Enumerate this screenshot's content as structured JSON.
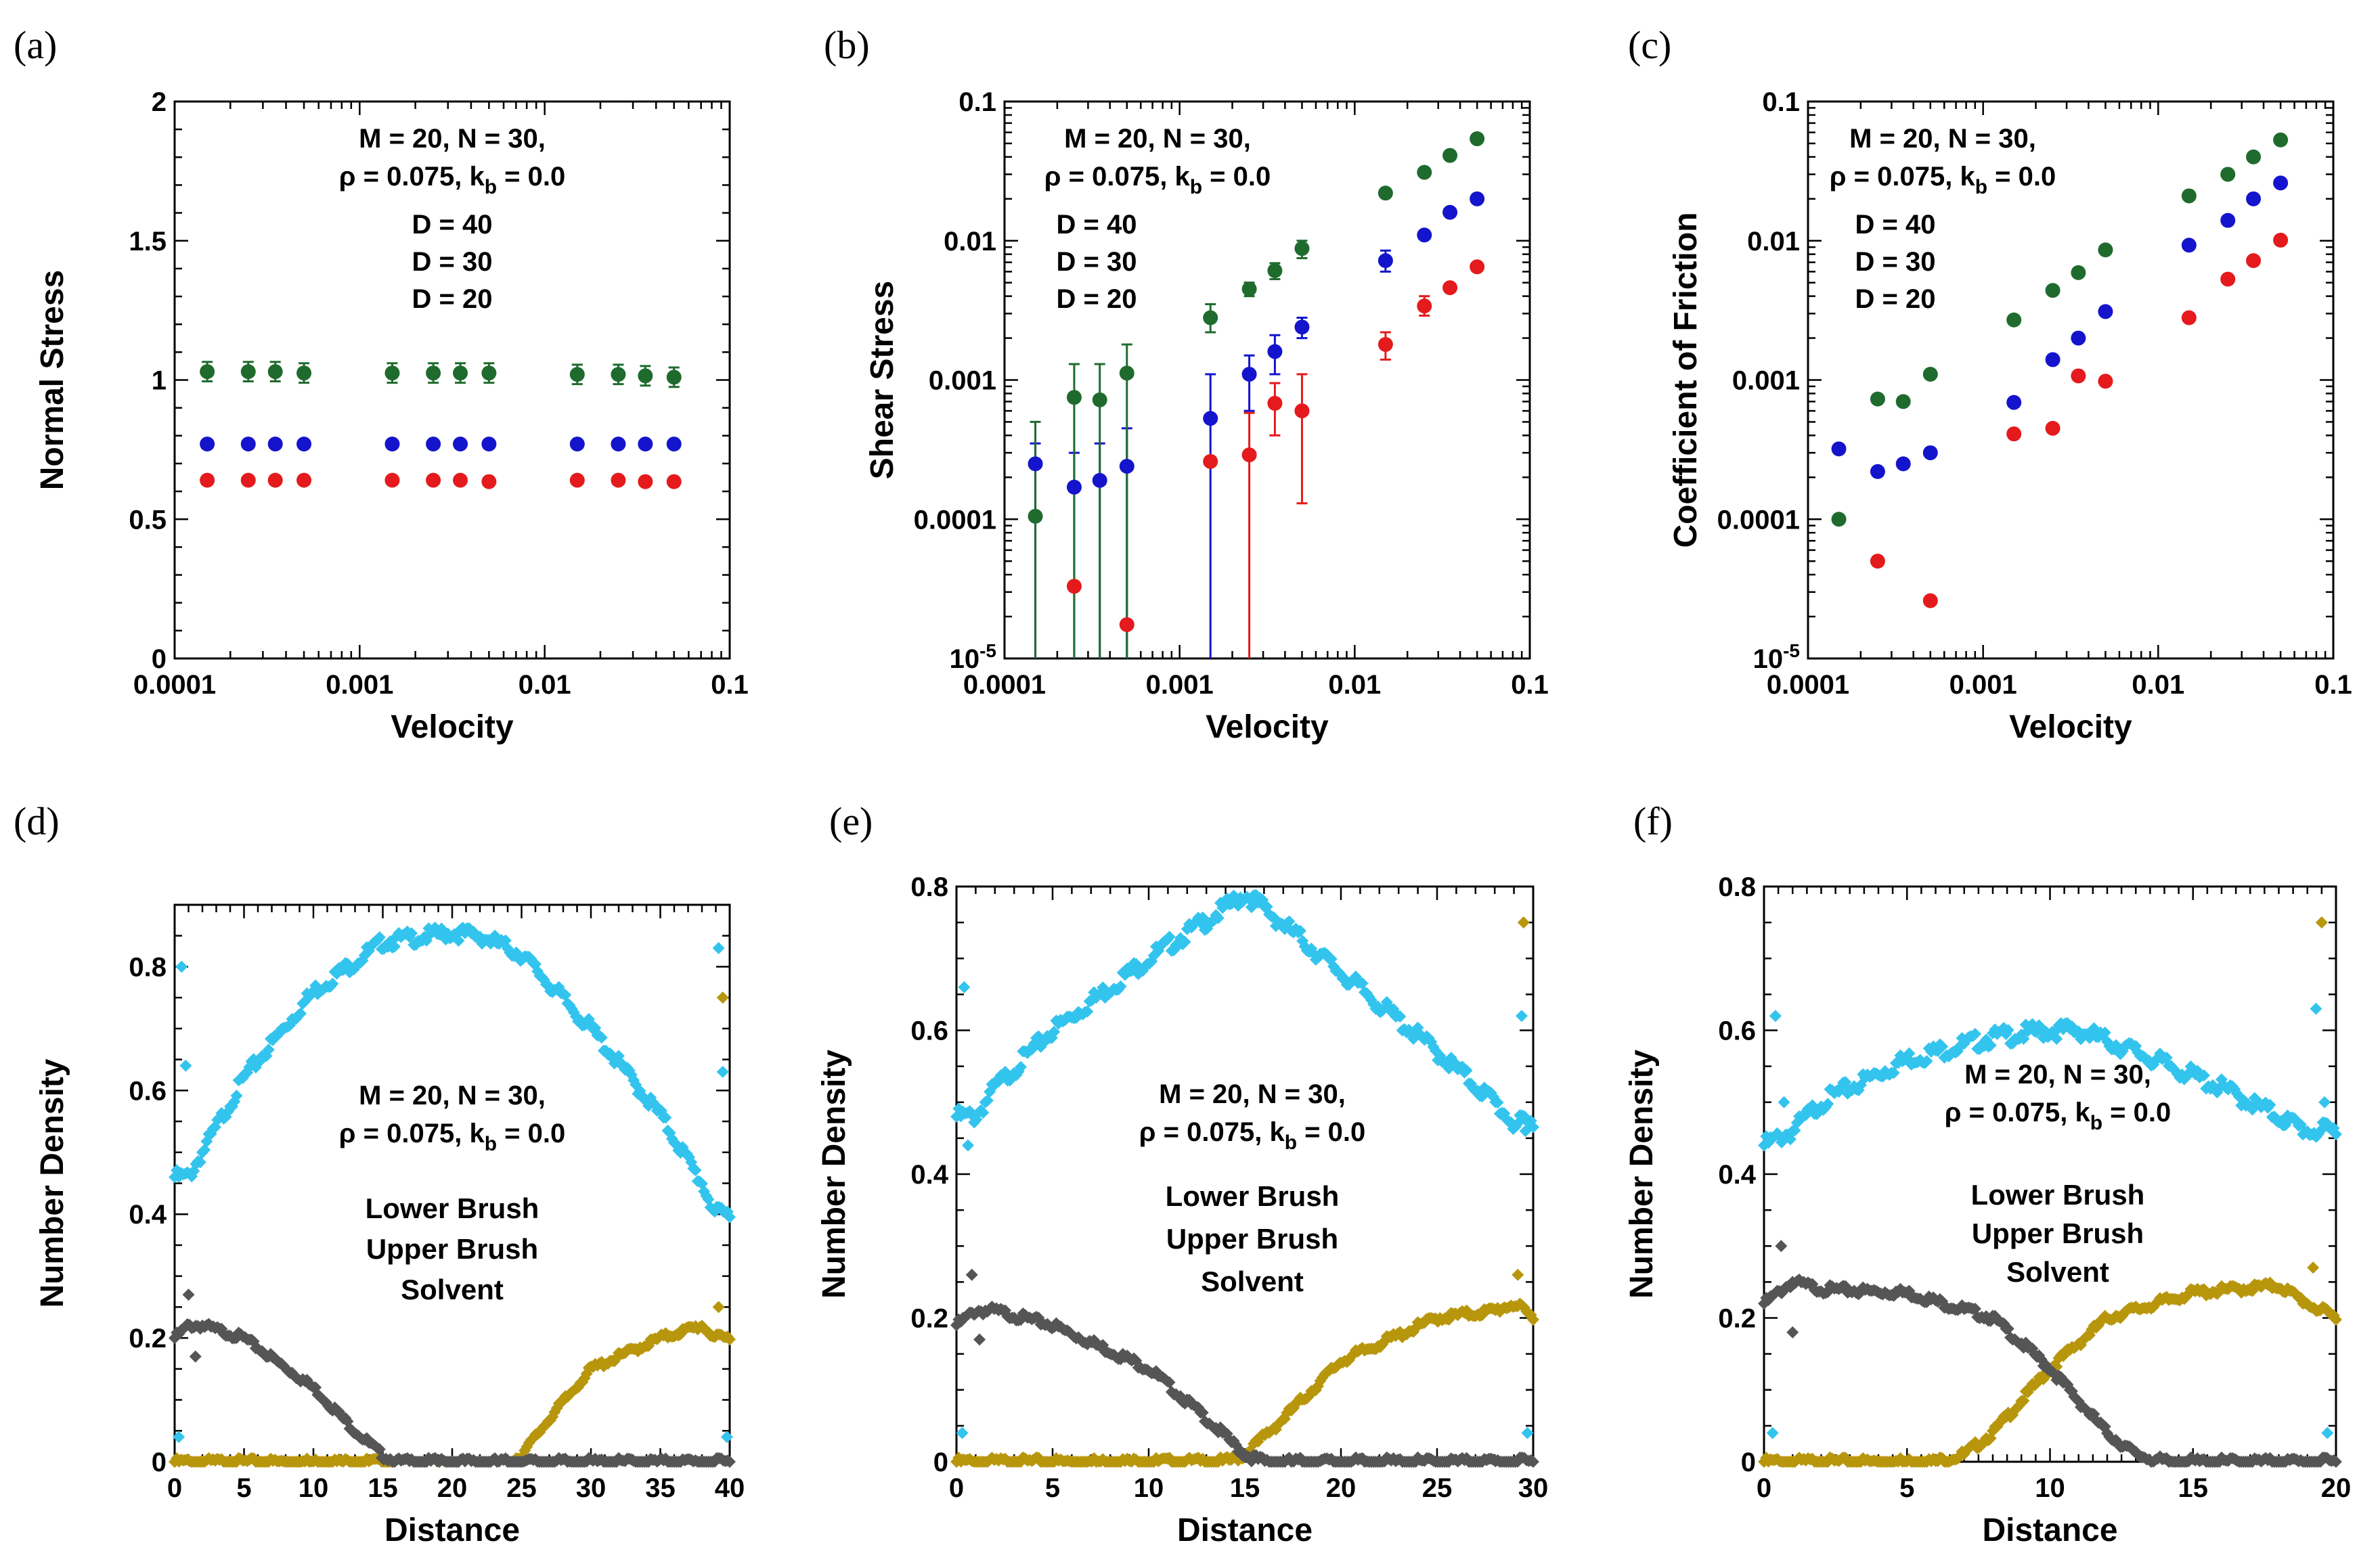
{
  "figure": {
    "colors": {
      "red": "#e41a1c",
      "blue": "#1414cc",
      "green": "#1f6b2e",
      "lower": "#555555",
      "upper": "#b8960c",
      "solvent": "#33c4ee"
    }
  },
  "chart_data": [
    {
      "panel": "(a)",
      "type": "scatter",
      "xscale": "log",
      "yscale": "linear",
      "xlabel": "Velocity",
      "ylabel": "Normal Stress",
      "xlim": [
        0.0001,
        0.1
      ],
      "ylim": [
        0,
        2
      ],
      "xticks": [
        "0.0001",
        "0.001",
        "0.01",
        "0.1"
      ],
      "xtick_values": [
        0.0001,
        0.001,
        0.01,
        0.1
      ],
      "yticks": [
        "0",
        "0.5",
        "1",
        "1.5",
        "2"
      ],
      "ytick_values": [
        0,
        0.5,
        1,
        1.5,
        2
      ],
      "annotation": {
        "line1": "M = 20, N = 30,",
        "line2a": "ρ = 0.075, k",
        "sub": "b",
        "line2b": " = 0.0"
      },
      "series": [
        {
          "name": "D = 40",
          "color": "#e41a1c",
          "x": [
            0.00015,
            0.00025,
            0.00035,
            0.0005,
            0.0015,
            0.0025,
            0.0035,
            0.005,
            0.015,
            0.025,
            0.035,
            0.05
          ],
          "y": [
            0.64,
            0.64,
            0.64,
            0.64,
            0.64,
            0.64,
            0.64,
            0.635,
            0.64,
            0.64,
            0.635,
            0.635
          ]
        },
        {
          "name": "D = 30",
          "color": "#1414cc",
          "x": [
            0.00015,
            0.00025,
            0.00035,
            0.0005,
            0.0015,
            0.0025,
            0.0035,
            0.005,
            0.015,
            0.025,
            0.035,
            0.05
          ],
          "y": [
            0.77,
            0.77,
            0.77,
            0.77,
            0.77,
            0.77,
            0.77,
            0.77,
            0.77,
            0.77,
            0.77,
            0.77
          ]
        },
        {
          "name": "D = 20",
          "color": "#1f6b2e",
          "x": [
            0.00015,
            0.00025,
            0.00035,
            0.0005,
            0.0015,
            0.0025,
            0.0035,
            0.005,
            0.015,
            0.025,
            0.035,
            0.05
          ],
          "y": [
            1.03,
            1.03,
            1.03,
            1.025,
            1.025,
            1.025,
            1.025,
            1.025,
            1.02,
            1.02,
            1.015,
            1.01
          ],
          "err": [
            0.035,
            0.035,
            0.035,
            0.035,
            0.035,
            0.035,
            0.035,
            0.035,
            0.035,
            0.035,
            0.035,
            0.035
          ]
        }
      ]
    },
    {
      "panel": "(b)",
      "type": "scatter",
      "xscale": "log",
      "yscale": "log",
      "xlabel": "Velocity",
      "ylabel": "Shear Stress",
      "xlim": [
        0.0001,
        0.1
      ],
      "ylim": [
        1e-05,
        0.1
      ],
      "xticks": [
        "0.0001",
        "0.001",
        "0.01",
        "0.1"
      ],
      "xtick_values": [
        0.0001,
        0.001,
        0.01,
        0.1
      ],
      "yticks": [
        "10",
        "0.0001",
        "0.001",
        "0.01",
        "0.1"
      ],
      "ytick_values": [
        1e-05,
        0.0001,
        0.001,
        0.01,
        0.1
      ],
      "ytick_sup": "-5",
      "annotation": {
        "line1": "M = 20, N = 30,",
        "line2a": "ρ = 0.075, k",
        "sub": "b",
        "line2b": " = 0.0"
      },
      "series": [
        {
          "name": "D = 40",
          "color": "#e41a1c",
          "x": [
            0.00025,
            0.0005,
            0.0015,
            0.0025,
            0.0035,
            0.005,
            0.015,
            0.025,
            0.035,
            0.05
          ],
          "y": [
            3.3e-05,
            1.75e-05,
            0.00026,
            0.00029,
            0.00068,
            0.0006,
            0.0018,
            0.0034,
            0.0046,
            0.0065
          ],
          "err_lo": [
            null,
            null,
            null,
            1e-05,
            0.0004,
            0.00013,
            0.0014,
            0.0029,
            null,
            null
          ],
          "err_hi": [
            null,
            null,
            null,
            0.00058,
            0.00095,
            0.0011,
            0.0022,
            0.004,
            null,
            null
          ]
        },
        {
          "name": "D = 30",
          "color": "#1414cc",
          "x": [
            0.00015,
            0.00025,
            0.00035,
            0.0005,
            0.0015,
            0.0025,
            0.0035,
            0.005,
            0.015,
            0.025,
            0.035,
            0.05
          ],
          "y": [
            0.00025,
            0.00017,
            0.00019,
            0.00024,
            0.00053,
            0.0011,
            0.0016,
            0.0024,
            0.0072,
            0.011,
            0.016,
            0.02
          ],
          "err_lo": [
            1e-05,
            1e-05,
            1e-05,
            1e-05,
            1e-05,
            0.0006,
            0.0011,
            0.002,
            0.006,
            null,
            null,
            null
          ],
          "err_hi": [
            0.00035,
            0.0003,
            0.00035,
            0.00045,
            0.0011,
            0.0015,
            0.0021,
            0.0028,
            0.0085,
            null,
            null,
            null
          ]
        },
        {
          "name": "D = 20",
          "color": "#1f6b2e",
          "x": [
            0.00015,
            0.00025,
            0.00035,
            0.0005,
            0.0015,
            0.0025,
            0.0035,
            0.005,
            0.015,
            0.025,
            0.035,
            0.05
          ],
          "y": [
            0.000105,
            0.00075,
            0.00072,
            0.00112,
            0.0028,
            0.0045,
            0.0061,
            0.0088,
            0.022,
            0.031,
            0.041,
            0.054
          ],
          "err_lo": [
            1e-05,
            1e-05,
            1e-05,
            1e-05,
            0.0022,
            0.004,
            0.0053,
            0.0075,
            null,
            null,
            null,
            null
          ],
          "err_hi": [
            0.0005,
            0.0013,
            0.0013,
            0.0018,
            0.0035,
            0.005,
            0.0069,
            0.01,
            null,
            null,
            null,
            null
          ]
        }
      ]
    },
    {
      "panel": "(c)",
      "type": "scatter",
      "xscale": "log",
      "yscale": "log",
      "xlabel": "Velocity",
      "ylabel": "Coefficient of Friction",
      "xlim": [
        0.0001,
        0.1
      ],
      "ylim": [
        1e-05,
        0.1
      ],
      "xticks": [
        "0.0001",
        "0.001",
        "0.01",
        "0.1"
      ],
      "xtick_values": [
        0.0001,
        0.001,
        0.01,
        0.1
      ],
      "yticks": [
        "10",
        "0.0001",
        "0.001",
        "0.01",
        "0.1"
      ],
      "ytick_values": [
        1e-05,
        0.0001,
        0.001,
        0.01,
        0.1
      ],
      "ytick_sup": "-5",
      "annotation": {
        "line1": "M = 20, N = 30,",
        "line2a": "ρ = 0.075, k",
        "sub": "b",
        "line2b": " = 0.0"
      },
      "series": [
        {
          "name": "D = 40",
          "color": "#e41a1c",
          "x": [
            0.00025,
            0.0005,
            0.0015,
            0.0025,
            0.0035,
            0.005,
            0.015,
            0.025,
            0.035,
            0.05
          ],
          "y": [
            5e-05,
            2.6e-05,
            0.00041,
            0.00045,
            0.00107,
            0.00098,
            0.0028,
            0.0053,
            0.0072,
            0.0101
          ]
        },
        {
          "name": "D = 30",
          "color": "#1414cc",
          "x": [
            0.00015,
            0.00025,
            0.00035,
            0.0005,
            0.0015,
            0.0025,
            0.0035,
            0.005,
            0.015,
            0.025,
            0.035,
            0.05
          ],
          "y": [
            0.00032,
            0.00022,
            0.00025,
            0.0003,
            0.00069,
            0.0014,
            0.002,
            0.0031,
            0.0093,
            0.014,
            0.02,
            0.026
          ]
        },
        {
          "name": "D = 20",
          "color": "#1f6b2e",
          "x": [
            0.00015,
            0.00025,
            0.00035,
            0.0005,
            0.0015,
            0.0025,
            0.0035,
            0.005,
            0.015,
            0.025,
            0.035,
            0.05
          ],
          "y": [
            0.0001,
            0.00073,
            0.0007,
            0.0011,
            0.0027,
            0.0044,
            0.0059,
            0.0086,
            0.021,
            0.03,
            0.04,
            0.053
          ]
        }
      ]
    },
    {
      "panel": "(d)",
      "type": "scatter",
      "xscale": "linear",
      "yscale": "linear",
      "xlabel": "Distance",
      "ylabel": "Number Density",
      "xlim": [
        0,
        40
      ],
      "ylim": [
        0,
        0.9
      ],
      "xticks": [
        "0",
        "5",
        "10",
        "15",
        "20",
        "25",
        "30",
        "35",
        "40"
      ],
      "xtick_values": [
        0,
        5,
        10,
        15,
        20,
        25,
        30,
        35,
        40
      ],
      "yticks": [
        "0",
        "0.2",
        "0.4",
        "0.6",
        "0.8"
      ],
      "ytick_values": [
        0,
        0.2,
        0.4,
        0.6,
        0.8
      ],
      "D": 40,
      "annotation": {
        "line1": "M = 20, N = 30,",
        "line2a": "ρ = 0.075, k",
        "sub": "b",
        "line2b": " = 0.0"
      },
      "legend": [
        "Lower Brush",
        "Upper Brush",
        "Solvent"
      ],
      "profiles": {
        "solvent": {
          "x": [
            0,
            1,
            2,
            5,
            10,
            15,
            20,
            22,
            25,
            30,
            35,
            38,
            39,
            40
          ],
          "y": [
            0.46,
            0.46,
            0.5,
            0.62,
            0.76,
            0.84,
            0.855,
            0.85,
            0.82,
            0.7,
            0.56,
            0.45,
            0.4,
            0.4
          ]
        },
        "lower": {
          "x": [
            0,
            1,
            2,
            5,
            10,
            13,
            15,
            16,
            40
          ],
          "y": [
            0.2,
            0.22,
            0.22,
            0.2,
            0.12,
            0.05,
            0.01,
            0,
            0
          ]
        },
        "upper": {
          "x": [
            0,
            24,
            25,
            27,
            30,
            35,
            38,
            39,
            40
          ],
          "y": [
            0,
            0,
            0.01,
            0.07,
            0.15,
            0.2,
            0.22,
            0.2,
            0.2
          ]
        },
        "solvent_spikes": {
          "x": [
            0.5,
            0.8,
            39.2,
            39.5,
            0.3,
            39.8
          ],
          "y": [
            0.8,
            0.64,
            0.83,
            0.63,
            0.04,
            0.04
          ]
        },
        "upper_spikes": {
          "x": [
            39.5,
            39.2
          ],
          "y": [
            0.75,
            0.25
          ]
        },
        "lower_spikes": {
          "x": [
            1,
            1.5
          ],
          "y": [
            0.27,
            0.17
          ]
        }
      }
    },
    {
      "panel": "(e)",
      "type": "scatter",
      "xscale": "linear",
      "yscale": "linear",
      "xlabel": "Distance",
      "ylabel": "Number Density",
      "xlim": [
        0,
        30
      ],
      "ylim": [
        0,
        0.8
      ],
      "xticks": [
        "0",
        "5",
        "10",
        "15",
        "20",
        "25",
        "30"
      ],
      "xtick_values": [
        0,
        5,
        10,
        15,
        20,
        25,
        30
      ],
      "yticks": [
        "0",
        "0.2",
        "0.4",
        "0.6",
        "0.8"
      ],
      "ytick_values": [
        0,
        0.2,
        0.4,
        0.6,
        0.8
      ],
      "D": 30,
      "annotation": {
        "line1": "M = 20, N = 30,",
        "line2a": "ρ = 0.075, k",
        "sub": "b",
        "line2b": " = 0.0"
      },
      "legend": [
        "Lower Brush",
        "Upper Brush",
        "Solvent"
      ],
      "profiles": {
        "solvent": {
          "x": [
            0,
            1,
            2,
            5,
            10,
            14,
            15,
            16,
            20,
            25,
            28,
            29,
            30
          ],
          "y": [
            0.48,
            0.48,
            0.52,
            0.6,
            0.7,
            0.77,
            0.79,
            0.77,
            0.68,
            0.57,
            0.5,
            0.47,
            0.47
          ]
        },
        "lower": {
          "x": [
            0,
            1,
            2,
            5,
            10,
            13,
            15,
            16,
            30
          ],
          "y": [
            0.19,
            0.21,
            0.21,
            0.19,
            0.13,
            0.06,
            0.01,
            0,
            0
          ]
        },
        "upper": {
          "x": [
            0,
            14,
            15,
            17,
            20,
            25,
            28,
            29,
            30
          ],
          "y": [
            0,
            0,
            0.01,
            0.06,
            0.14,
            0.2,
            0.21,
            0.22,
            0.2
          ]
        },
        "solvent_spikes": {
          "x": [
            0.4,
            0.6,
            29.4,
            29.6,
            0.3,
            29.7
          ],
          "y": [
            0.66,
            0.44,
            0.62,
            0.46,
            0.04,
            0.04
          ]
        },
        "upper_spikes": {
          "x": [
            29.5,
            29.2
          ],
          "y": [
            0.75,
            0.26
          ]
        },
        "lower_spikes": {
          "x": [
            0.8,
            1.2
          ],
          "y": [
            0.26,
            0.17
          ]
        }
      }
    },
    {
      "panel": "(f)",
      "type": "scatter",
      "xscale": "linear",
      "yscale": "linear",
      "xlabel": "Distance",
      "ylabel": "Number Density",
      "xlim": [
        0,
        20
      ],
      "ylim": [
        0,
        0.8
      ],
      "xticks": [
        "0",
        "5",
        "10",
        "15",
        "20"
      ],
      "xtick_values": [
        0,
        5,
        10,
        15,
        20
      ],
      "yticks": [
        "0",
        "0.2",
        "0.4",
        "0.6",
        "0.8"
      ],
      "ytick_values": [
        0,
        0.2,
        0.4,
        0.6,
        0.8
      ],
      "D": 20,
      "annotation": {
        "line1": "M = 20, N = 30,",
        "line2a": "ρ = 0.075, k",
        "sub": "b",
        "line2b": " = 0.0"
      },
      "legend": [
        "Lower Brush",
        "Upper Brush",
        "Solvent"
      ],
      "profiles": {
        "solvent": {
          "x": [
            0,
            1,
            2,
            5,
            8,
            10,
            11,
            13,
            16,
            18,
            19,
            20
          ],
          "y": [
            0.44,
            0.46,
            0.5,
            0.56,
            0.59,
            0.6,
            0.6,
            0.57,
            0.52,
            0.48,
            0.46,
            0.46
          ]
        },
        "lower": {
          "x": [
            0,
            1,
            2,
            5,
            8,
            10,
            12,
            13,
            14,
            20
          ],
          "y": [
            0.22,
            0.25,
            0.24,
            0.235,
            0.2,
            0.13,
            0.04,
            0.01,
            0,
            0
          ]
        },
        "upper": {
          "x": [
            0,
            6,
            7,
            8,
            10,
            12,
            15,
            18,
            19,
            20
          ],
          "y": [
            0,
            0,
            0.01,
            0.04,
            0.13,
            0.2,
            0.235,
            0.245,
            0.22,
            0.2
          ]
        },
        "solvent_spikes": {
          "x": [
            0.4,
            0.7,
            19.3,
            19.6,
            0.3,
            19.7
          ],
          "y": [
            0.62,
            0.5,
            0.63,
            0.5,
            0.04,
            0.04
          ]
        },
        "upper_spikes": {
          "x": [
            19.5,
            19.2
          ],
          "y": [
            0.75,
            0.27
          ]
        },
        "lower_spikes": {
          "x": [
            0.6,
            1.0
          ],
          "y": [
            0.3,
            0.18
          ]
        }
      }
    }
  ]
}
